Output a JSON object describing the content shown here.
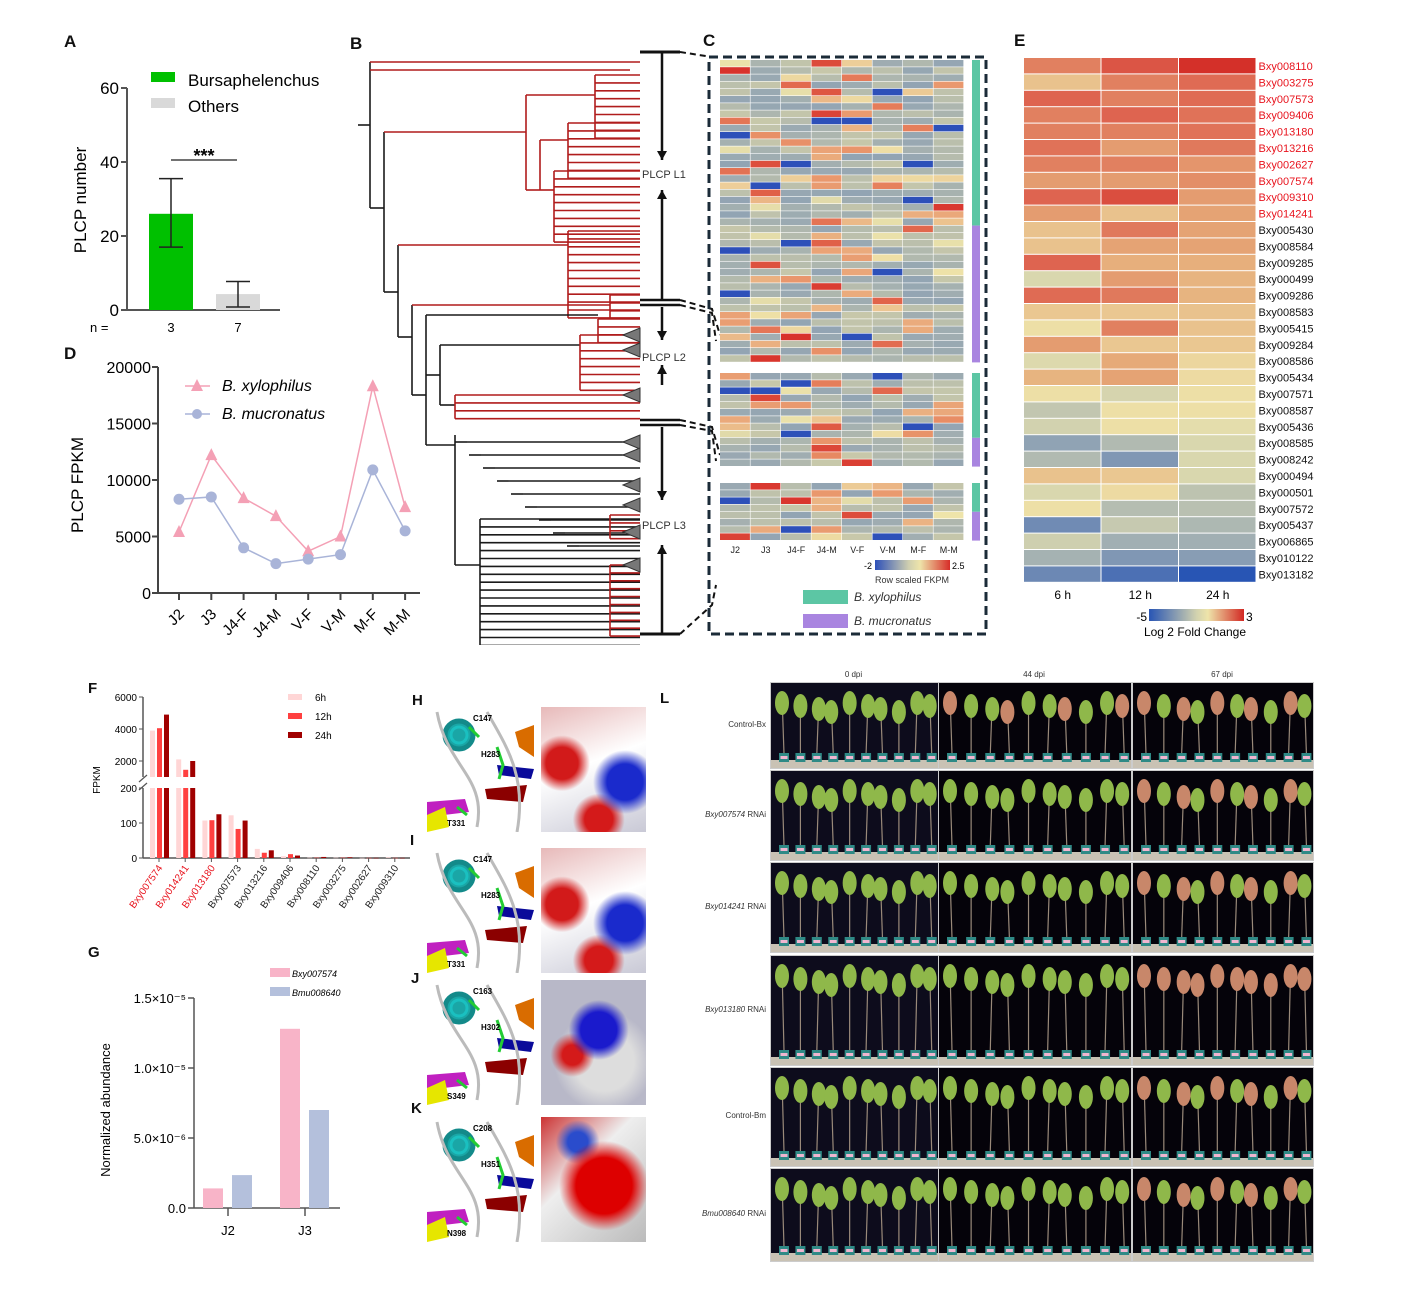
{
  "panels": {
    "A": "A",
    "B": "B",
    "C": "C",
    "D": "D",
    "E": "E",
    "F": "F",
    "G": "G",
    "H": "H",
    "I": "I",
    "J": "J",
    "K": "K",
    "L": "L"
  },
  "chart_data": [
    {
      "id": "A",
      "type": "bar",
      "categories": [
        "Bursaphelenchus",
        "Others"
      ],
      "values": [
        26,
        4.3
      ],
      "error_low": [
        17,
        0.8
      ],
      "error_high": [
        35.5,
        7.7
      ],
      "n_label": "n =",
      "n": [
        "3",
        "7"
      ],
      "ylabel": "PLCP number",
      "ylim": [
        0,
        60
      ],
      "yticks": [
        "0",
        "20",
        "40",
        "60"
      ],
      "significance": "***",
      "legend": [
        "Bursaphelenchus",
        "Others"
      ],
      "colors": [
        "#00c000",
        "#d9d9d9"
      ],
      "legend_placement": "top-right"
    },
    {
      "id": "D",
      "type": "line",
      "categories": [
        "J2",
        "J3",
        "J4-F",
        "J4-M",
        "V-F",
        "V-M",
        "M-F",
        "M-M"
      ],
      "series": [
        {
          "name": "B. xylophilus",
          "values": [
            5400,
            12200,
            8400,
            6800,
            3700,
            5000,
            18300,
            7600
          ],
          "marker": "triangle",
          "color": "#f4a0b5"
        },
        {
          "name": "B. mucronatus",
          "values": [
            8300,
            8500,
            4000,
            2600,
            3000,
            3400,
            10900,
            5500
          ],
          "marker": "circle",
          "color": "#a9b4d8"
        }
      ],
      "ylabel": "PLCP FPKM",
      "ylim": [
        0,
        20000
      ],
      "yticks": [
        "0",
        "5000",
        "10000",
        "15000",
        "20000"
      ],
      "legend_placement": "top-left"
    },
    {
      "id": "F",
      "type": "bar",
      "categories": [
        "Bxy007574",
        "Bxy014241",
        "Bxy013180",
        "Bxy007573",
        "Bxy013216",
        "Bxy009406",
        "Bxy008110",
        "Bxy003275",
        "Bxy002627",
        "Bxy009310"
      ],
      "highlighted_categories": [
        "Bxy007574",
        "Bxy014241",
        "Bxy013180"
      ],
      "series": [
        {
          "name": "6h",
          "values": [
            3900,
            2100,
            107,
            122,
            26,
            5,
            1,
            1,
            0.5,
            2
          ],
          "color": "#ffd6d6"
        },
        {
          "name": "12h",
          "values": [
            4050,
            1450,
            108,
            83,
            15,
            11,
            1,
            1,
            0.5,
            0.5
          ],
          "color": "#ff4040"
        },
        {
          "name": "24h",
          "values": [
            4900,
            2000,
            125,
            107,
            22,
            7,
            3,
            2,
            0.5,
            0.5
          ],
          "color": "#a00000"
        }
      ],
      "ylabel": "FPKM",
      "axis_break": [
        200,
        1000
      ],
      "yticks_lower": [
        "0",
        "100",
        "200"
      ],
      "yticks_upper": [
        "2000",
        "4000",
        "6000"
      ],
      "legend_placement": "top-right"
    },
    {
      "id": "G",
      "type": "bar",
      "categories": [
        "J2",
        "J3"
      ],
      "series": [
        {
          "name": "Bxy007574",
          "values": [
            1.4e-06,
            1.28e-05
          ],
          "color": "#f8b4c8"
        },
        {
          "name": "Bmu008640",
          "values": [
            2.35e-06,
            7e-06
          ],
          "color": "#b4c0dc"
        }
      ],
      "ylabel": "Normalized abundance",
      "ylim": [
        0,
        1.5e-05
      ],
      "yticks": [
        "0.0",
        "5.0×10⁻⁶",
        "1.0×10⁻⁵",
        "1.5×10⁻⁵"
      ],
      "legend_placement": "top-right"
    },
    {
      "id": "E",
      "type": "heatmap",
      "columns": [
        "6 h",
        "12 h",
        "24 h"
      ],
      "rows": [
        "Bxy008110",
        "Bxy003275",
        "Bxy007573",
        "Bxy009406",
        "Bxy013180",
        "Bxy013216",
        "Bxy002627",
        "Bxy007574",
        "Bxy009310",
        "Bxy014241",
        "Bxy005430",
        "Bxy008584",
        "Bxy009285",
        "Bxy000499",
        "Bxy009286",
        "Bxy008583",
        "Bxy005415",
        "Bxy009284",
        "Bxy008586",
        "Bxy005434",
        "Bxy007571",
        "Bxy008587",
        "Bxy005436",
        "Bxy008585",
        "Bxy008242",
        "Bxy000494",
        "Bxy000501",
        "Bxy007572",
        "Bxy005437",
        "Bxy006865",
        "Bxy010122",
        "Bxy013182"
      ],
      "highlighted_rows": 10,
      "values": [
        [
          1.8,
          2.4,
          2.9
        ],
        [
          0.7,
          1.8,
          2.1
        ],
        [
          2.2,
          1.8,
          2.1
        ],
        [
          1.8,
          2.2,
          2.0
        ],
        [
          1.8,
          1.8,
          2.0
        ],
        [
          2.0,
          1.4,
          1.9
        ],
        [
          1.8,
          1.8,
          1.5
        ],
        [
          1.4,
          1.4,
          1.6
        ],
        [
          2.2,
          2.5,
          1.4
        ],
        [
          1.4,
          0.7,
          1.3
        ],
        [
          0.7,
          1.9,
          1.3
        ],
        [
          0.7,
          1.3,
          1.3
        ],
        [
          2.2,
          1.1,
          1.1
        ],
        [
          -0.6,
          1.4,
          1.0
        ],
        [
          2.1,
          1.9,
          1.0
        ],
        [
          0.6,
          0.6,
          0.7
        ],
        [
          0.1,
          1.8,
          0.7
        ],
        [
          1.4,
          0.6,
          0.6
        ],
        [
          -0.5,
          1.2,
          0.3
        ],
        [
          1.0,
          1.3,
          0.2
        ],
        [
          0.1,
          -0.7,
          0.1
        ],
        [
          -1.2,
          0.1,
          0.1
        ],
        [
          -0.8,
          0.1,
          -0.3
        ],
        [
          -2.4,
          -1.6,
          -0.6
        ],
        [
          -1.6,
          -2.8,
          -0.6
        ],
        [
          0.7,
          0.6,
          -0.6
        ],
        [
          -0.6,
          0.2,
          -1.3
        ],
        [
          0.1,
          -1.5,
          -1.4
        ],
        [
          -3.2,
          -1.1,
          -1.7
        ],
        [
          -0.9,
          -2.0,
          -2.0
        ],
        [
          -1.9,
          -2.8,
          -2.6
        ],
        [
          -3.3,
          -4.1,
          -5.0
        ]
      ],
      "scale": {
        "min": -5,
        "max": 3,
        "min_label": "-5",
        "max_label": "3",
        "title": "Log 2 Fold Change"
      }
    },
    {
      "id": "C",
      "type": "heatmap",
      "columns": [
        "J2",
        "J3",
        "J4-F",
        "J4-M",
        "V-F",
        "V-M",
        "M-F",
        "M-M"
      ],
      "blocks": [
        {
          "name": "PLCP L1",
          "rows": 42,
          "xylophilus_rows": 23,
          "mucronatus_rows": 19
        },
        {
          "name": "PLCP L2",
          "rows": 13,
          "xylophilus_rows": 9,
          "mucronatus_rows": 4
        },
        {
          "name": "PLCP L3",
          "rows": 8,
          "xylophilus_rows": 4,
          "mucronatus_rows": 4
        }
      ],
      "scale": {
        "min": -2,
        "max": 2.5,
        "min_label": "-2",
        "max_label": "2.5",
        "title": "Row scaled FKPM"
      },
      "legend": [
        {
          "name": "B. xylophilus",
          "color": "#5cc6a4"
        },
        {
          "name": "B. mucronatus",
          "color": "#a985e0"
        }
      ]
    }
  ],
  "tree": {
    "clade_labels": [
      "PLCP L1",
      "PLCP L2",
      "PLCP L3"
    ]
  },
  "structures": {
    "H": {
      "residues": [
        "C147",
        "H283",
        "T331"
      ]
    },
    "I": {
      "residues": [
        "C147",
        "H283",
        "T331"
      ]
    },
    "J": {
      "residues": [
        "C163",
        "H302",
        "S349"
      ]
    },
    "K": {
      "residues": [
        "C208",
        "H351",
        "N398"
      ]
    }
  },
  "photos": {
    "columns": [
      "0 dpi",
      "44 dpi",
      "67 dpi"
    ],
    "rows": [
      {
        "label": "Control-Bx",
        "italic": ""
      },
      {
        "label": " RNAi",
        "italic": "Bxy007574"
      },
      {
        "label": " RNAi",
        "italic": "Bxy014241"
      },
      {
        "label": " RNAi",
        "italic": "Bxy013180"
      },
      {
        "label": "Control-Bm",
        "italic": ""
      },
      {
        "label": " RNAi",
        "italic": "Bmu008640"
      }
    ]
  },
  "colors": {
    "tree_red": "#b01c1c",
    "tree_black": "#1a1a1a",
    "highlight_red": "#e8141e"
  }
}
